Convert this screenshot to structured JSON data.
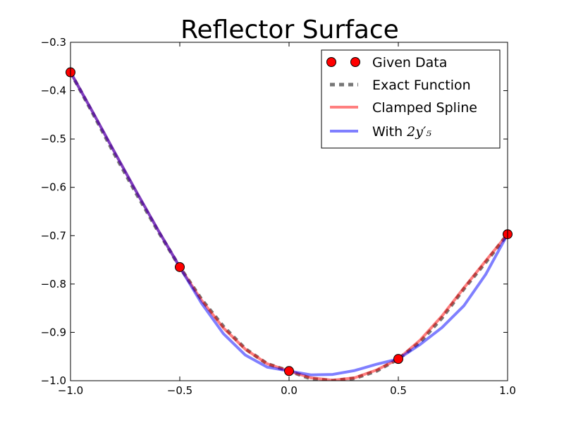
{
  "chart_data": {
    "type": "line",
    "title": "Reflector Surface",
    "xlabel": "",
    "ylabel": "",
    "xlim": [
      -1.0,
      1.0
    ],
    "ylim": [
      -1.0,
      -0.3
    ],
    "grid": false,
    "legend_position": "top-right",
    "x_ticks": [
      -1.0,
      -0.5,
      0.0,
      0.5,
      1.0
    ],
    "x_tick_labels": [
      "−1.0",
      "−0.5",
      "0.0",
      "0.5",
      "1.0"
    ],
    "y_ticks": [
      -1.0,
      -0.9,
      -0.8,
      -0.7,
      -0.6,
      -0.5,
      -0.4,
      -0.3
    ],
    "y_tick_labels": [
      "−1.0",
      "−0.9",
      "−0.8",
      "−0.7",
      "−0.6",
      "−0.5",
      "−0.4",
      "−0.3"
    ],
    "series": [
      {
        "name": "Given Data",
        "kind": "marker",
        "color": "#ff0000",
        "x": [
          -1.0,
          -0.5,
          0.0,
          0.5,
          1.0
        ],
        "y": [
          -0.362,
          -0.765,
          -0.98,
          -0.955,
          -0.697
        ]
      },
      {
        "name": "Exact Function",
        "kind": "dashed",
        "color": "#555555",
        "x": [
          -1.0,
          -0.9,
          -0.8,
          -0.7,
          -0.6,
          -0.5,
          -0.4,
          -0.3,
          -0.2,
          -0.1,
          0.0,
          0.1,
          0.2,
          0.3,
          0.4,
          0.5,
          0.6,
          0.7,
          0.8,
          0.9,
          1.0
        ],
        "y": [
          -0.362,
          -0.445,
          -0.53,
          -0.612,
          -0.69,
          -0.765,
          -0.832,
          -0.888,
          -0.934,
          -0.965,
          -0.98,
          -0.996,
          -1.0,
          -0.995,
          -0.98,
          -0.955,
          -0.92,
          -0.87,
          -0.81,
          -0.755,
          -0.697
        ]
      },
      {
        "name": "Clamped Spline",
        "kind": "line",
        "color": "#ff0000",
        "x": [
          -1.0,
          -0.9,
          -0.8,
          -0.7,
          -0.6,
          -0.5,
          -0.4,
          -0.3,
          -0.2,
          -0.1,
          0.0,
          0.1,
          0.2,
          0.3,
          0.4,
          0.5,
          0.6,
          0.7,
          0.8,
          0.9,
          1.0
        ],
        "y": [
          -0.362,
          -0.443,
          -0.526,
          -0.608,
          -0.688,
          -0.765,
          -0.834,
          -0.891,
          -0.935,
          -0.965,
          -0.98,
          -0.994,
          -0.999,
          -0.994,
          -0.978,
          -0.955,
          -0.916,
          -0.866,
          -0.808,
          -0.752,
          -0.697
        ]
      },
      {
        "name": "With",
        "name_math": "2y′₅",
        "kind": "line",
        "color": "#0000ff",
        "x": [
          -1.0,
          -0.9,
          -0.8,
          -0.7,
          -0.6,
          -0.5,
          -0.4,
          -0.3,
          -0.2,
          -0.1,
          0.0,
          0.1,
          0.2,
          0.3,
          0.4,
          0.5,
          0.6,
          0.7,
          0.8,
          0.9,
          1.0
        ],
        "y": [
          -0.362,
          -0.443,
          -0.526,
          -0.608,
          -0.688,
          -0.765,
          -0.84,
          -0.903,
          -0.947,
          -0.972,
          -0.98,
          -0.988,
          -0.987,
          -0.979,
          -0.966,
          -0.955,
          -0.925,
          -0.89,
          -0.845,
          -0.78,
          -0.697
        ]
      }
    ]
  }
}
